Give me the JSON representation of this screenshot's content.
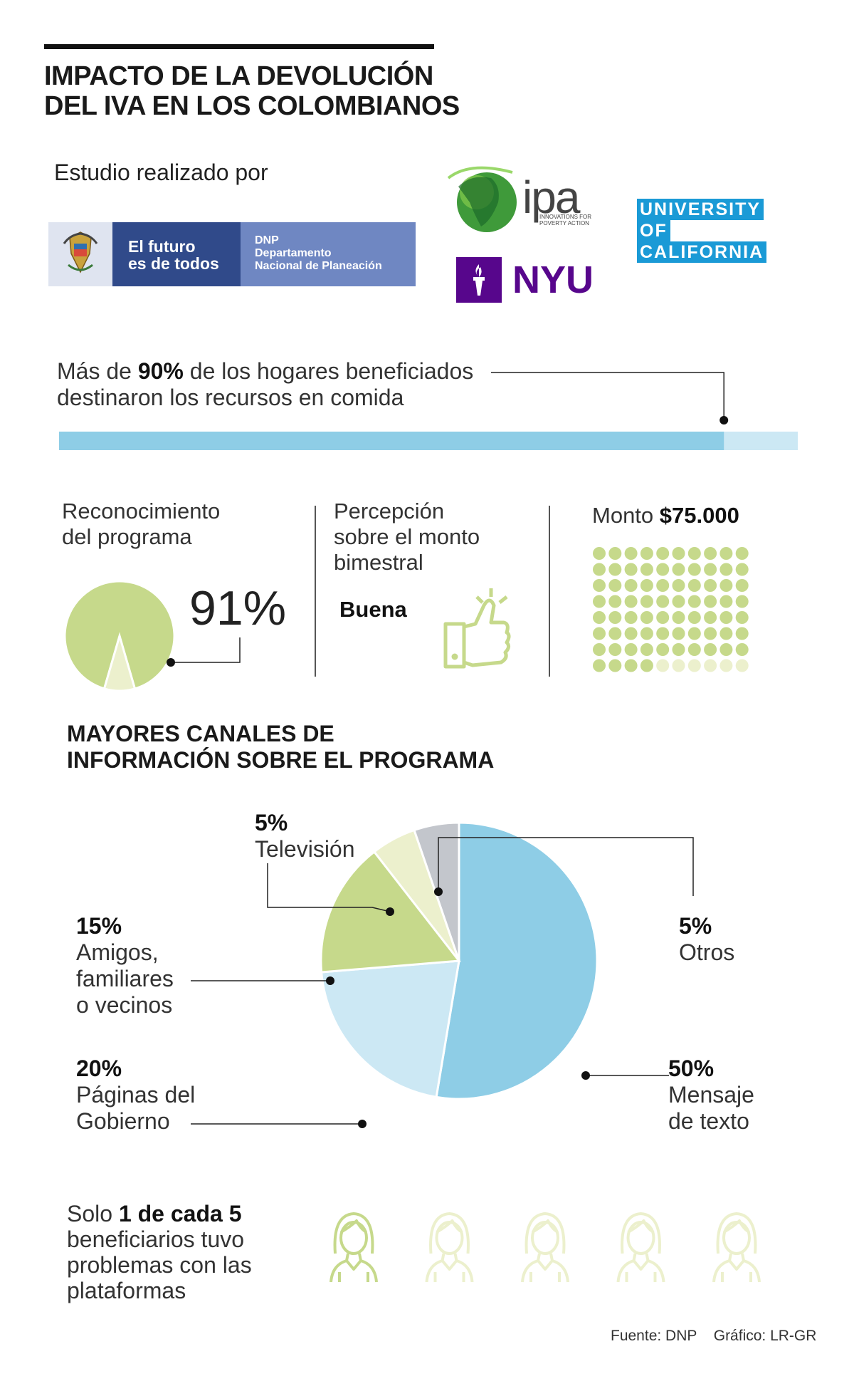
{
  "title_line1": "IMPACTO DE LA DEVOLUCIÓN",
  "title_line2": "DEL IVA EN LOS COLOMBIANOS",
  "study_label": "Estudio realizado por",
  "logos": {
    "dnp_slogan_1": "El futuro",
    "dnp_slogan_2": "es de todos",
    "dnp_name_1": "DNP",
    "dnp_name_2": "Departamento",
    "dnp_name_3": "Nacional de Planeación",
    "ipa": "ipa",
    "ipa_sub": "INNOVATIONS FOR POVERTY ACTION",
    "nyu": "NYU",
    "uc_1": "UNIVERSITY",
    "uc_2": "OF",
    "uc_3": "CALIFORNIA"
  },
  "food_stat": {
    "line1_pre": "Más de ",
    "line1_bold": "90%",
    "line1_post": " de los hogares beneficiados",
    "line2": "destinaron los recursos en comida"
  },
  "recognition": {
    "header_1": "Reconocimiento",
    "header_2": "del programa",
    "value_text": "91%"
  },
  "perception": {
    "header_1": "Percepción",
    "header_2": "sobre el monto",
    "header_3": "bimestral",
    "value": "Buena"
  },
  "amount": {
    "label": "Monto ",
    "value": "$75.000"
  },
  "channels": {
    "heading_1": "MAYORES CANALES DE",
    "heading_2": "INFORMACIÓN SOBRE EL PROGRAMA"
  },
  "platform_problems": {
    "line1_pre": "Solo ",
    "line1_bold": "1 de cada 5",
    "line2": "beneficiarios tuvo",
    "line3": "problemas con las",
    "line4": "plataformas"
  },
  "source": "Fuente: DNP",
  "credit": "Gráfico: LR-GR",
  "colors": {
    "blue": "#8ecde6",
    "light_blue": "#cce8f4",
    "green": "#c6d98b",
    "light_green": "#ecf0cd",
    "gray": "#c3c6cc"
  },
  "chart_data": [
    {
      "type": "bar",
      "categories": [
        "hogares que destinaron los recursos en comida"
      ],
      "values": [
        90
      ],
      "ylim": [
        0,
        100
      ]
    },
    {
      "type": "pie",
      "categories": [
        "Reconocimiento del programa"
      ],
      "values": [
        91
      ]
    },
    {
      "type": "pie",
      "categories": [
        "Mensaje de texto",
        "Páginas del Gobierno",
        "Amigos, familiares o vecinos",
        "Televisión",
        "Otros"
      ],
      "values": [
        50,
        20,
        15,
        5,
        5
      ],
      "labels": [
        {
          "pct": "50%",
          "l1": "Mensaje",
          "l2": "de texto",
          "l3": ""
        },
        {
          "pct": "20%",
          "l1": "Páginas del",
          "l2": "Gobierno",
          "l3": ""
        },
        {
          "pct": "15%",
          "l1": "Amigos,",
          "l2": "familiares",
          "l3": "o vecinos"
        },
        {
          "pct": "5%",
          "l1": "Televisión",
          "l2": "",
          "l3": ""
        },
        {
          "pct": "5%",
          "l1": "Otros",
          "l2": "",
          "l3": ""
        }
      ],
      "colors": [
        "#8ecde6",
        "#cce8f4",
        "#c6d98b",
        "#ecf0cd",
        "#c3c6cc"
      ]
    },
    {
      "type": "pictogram",
      "categories": [
        "con problemas",
        "sin problemas"
      ],
      "values": [
        1,
        4
      ]
    }
  ]
}
